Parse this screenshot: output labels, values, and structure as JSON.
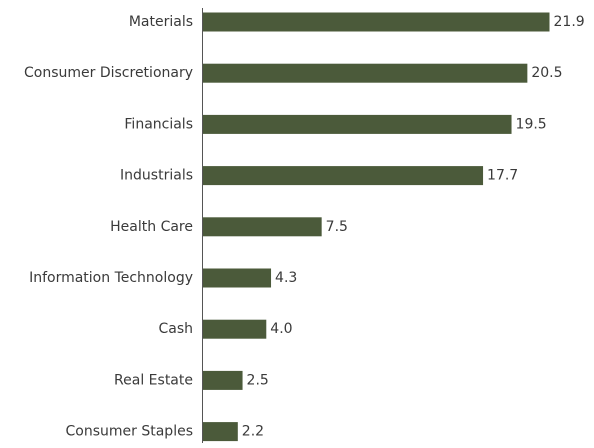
{
  "chart_data": {
    "type": "bar",
    "orientation": "horizontal",
    "title": "",
    "xlabel": "",
    "ylabel": "",
    "categories": [
      "Materials",
      "Consumer Discretionary",
      "Financials",
      "Industrials",
      "Health Care",
      "Information Technology",
      "Cash",
      "Real Estate",
      "Consumer Staples"
    ],
    "values": [
      21.9,
      20.5,
      19.5,
      17.7,
      7.5,
      4.3,
      4.0,
      2.5,
      2.2
    ],
    "value_labels": [
      "21.9",
      "20.5",
      "19.5",
      "17.7",
      "7.5",
      "4.3",
      "4.0",
      "2.5",
      "2.2"
    ],
    "xlim": [
      0,
      22.5
    ],
    "grid": false,
    "legend": "none",
    "colors": {
      "bar": "#4b5a3a",
      "axis": "#555555",
      "text": "#3a3a3a"
    }
  }
}
